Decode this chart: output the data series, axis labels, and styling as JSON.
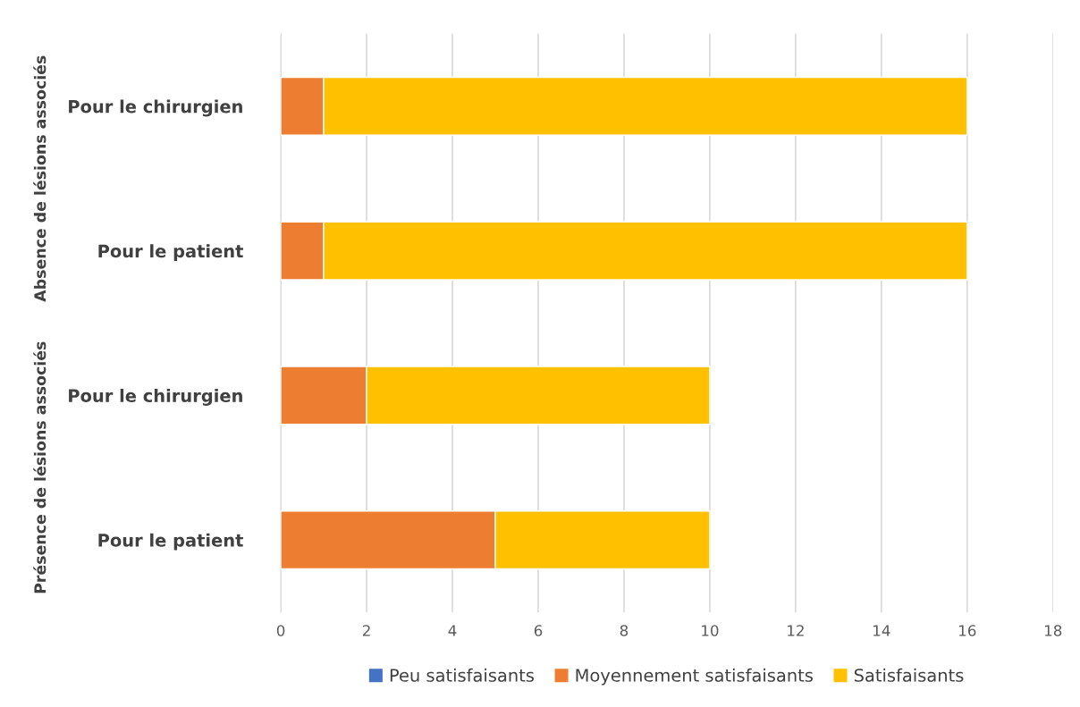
{
  "chart_data": {
    "type": "bar",
    "orientation": "horizontal",
    "stacked": true,
    "categories": [
      "Pour le chirurgien",
      "Pour le patient",
      "Pour le chirurgien",
      "Pour le patient"
    ],
    "series": [
      {
        "name": "Peu satisfaisants",
        "color": "#4472c4",
        "values": [
          0,
          0,
          0,
          0
        ]
      },
      {
        "name": "Moyennement satisfaisants",
        "color": "#ed7d31",
        "values": [
          1,
          1,
          2,
          5
        ]
      },
      {
        "name": "Satisfaisants",
        "color": "#ffc000",
        "values": [
          15,
          15,
          8,
          5
        ]
      }
    ],
    "xlim": [
      0,
      18
    ],
    "xticks": [
      0,
      2,
      4,
      6,
      8,
      10,
      12,
      14,
      16,
      18
    ],
    "annotations": [
      "Absence de lésions associés",
      "Présence de lésions associés"
    ],
    "grid": "x",
    "legend": "bottom"
  }
}
